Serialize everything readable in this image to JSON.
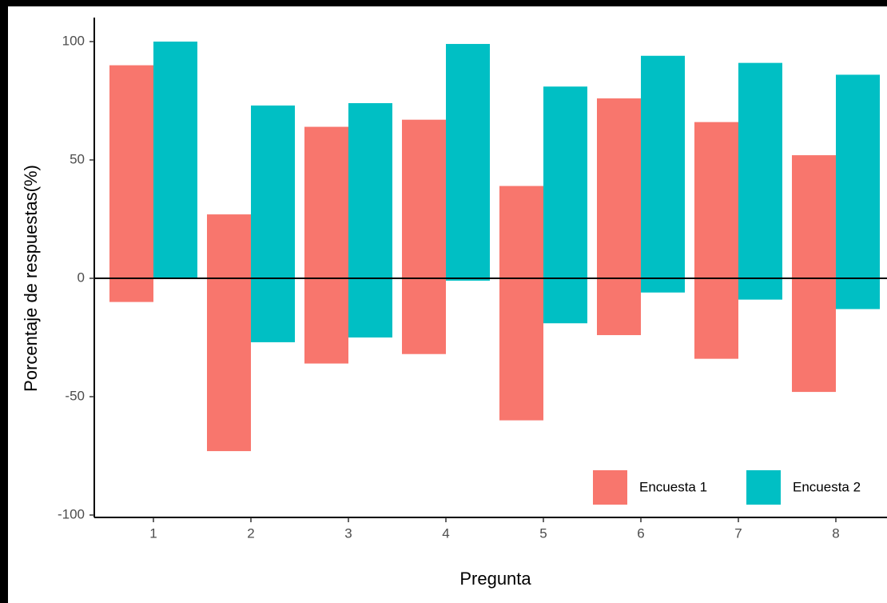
{
  "chart_data": {
    "type": "diverging_bar",
    "x_label": "Pregunta",
    "y_label": "Porcentaje de respuestas(%)",
    "categories": [
      "1",
      "2",
      "3",
      "4",
      "5",
      "6",
      "7",
      "8"
    ],
    "series": [
      {
        "name": "Encuesta 1",
        "color": "#f8766d",
        "values": [
          90,
          27,
          64,
          67,
          39,
          76,
          66,
          52
        ],
        "negative_values": [
          -10,
          -73,
          -36,
          -32,
          -60,
          -24,
          -34,
          -48
        ]
      },
      {
        "name": "Encuesta 2",
        "color": "#00bfc4",
        "values": [
          100,
          73,
          74,
          99,
          81,
          94,
          91,
          86
        ],
        "negative_values": [
          0,
          -27,
          -25,
          -1,
          -19,
          -6,
          -9,
          -13
        ]
      }
    ],
    "ylim": [
      -100,
      100
    ],
    "yticks": [
      -100,
      -50,
      0,
      50,
      100
    ],
    "hline": 0,
    "legend": "bottom-right"
  }
}
